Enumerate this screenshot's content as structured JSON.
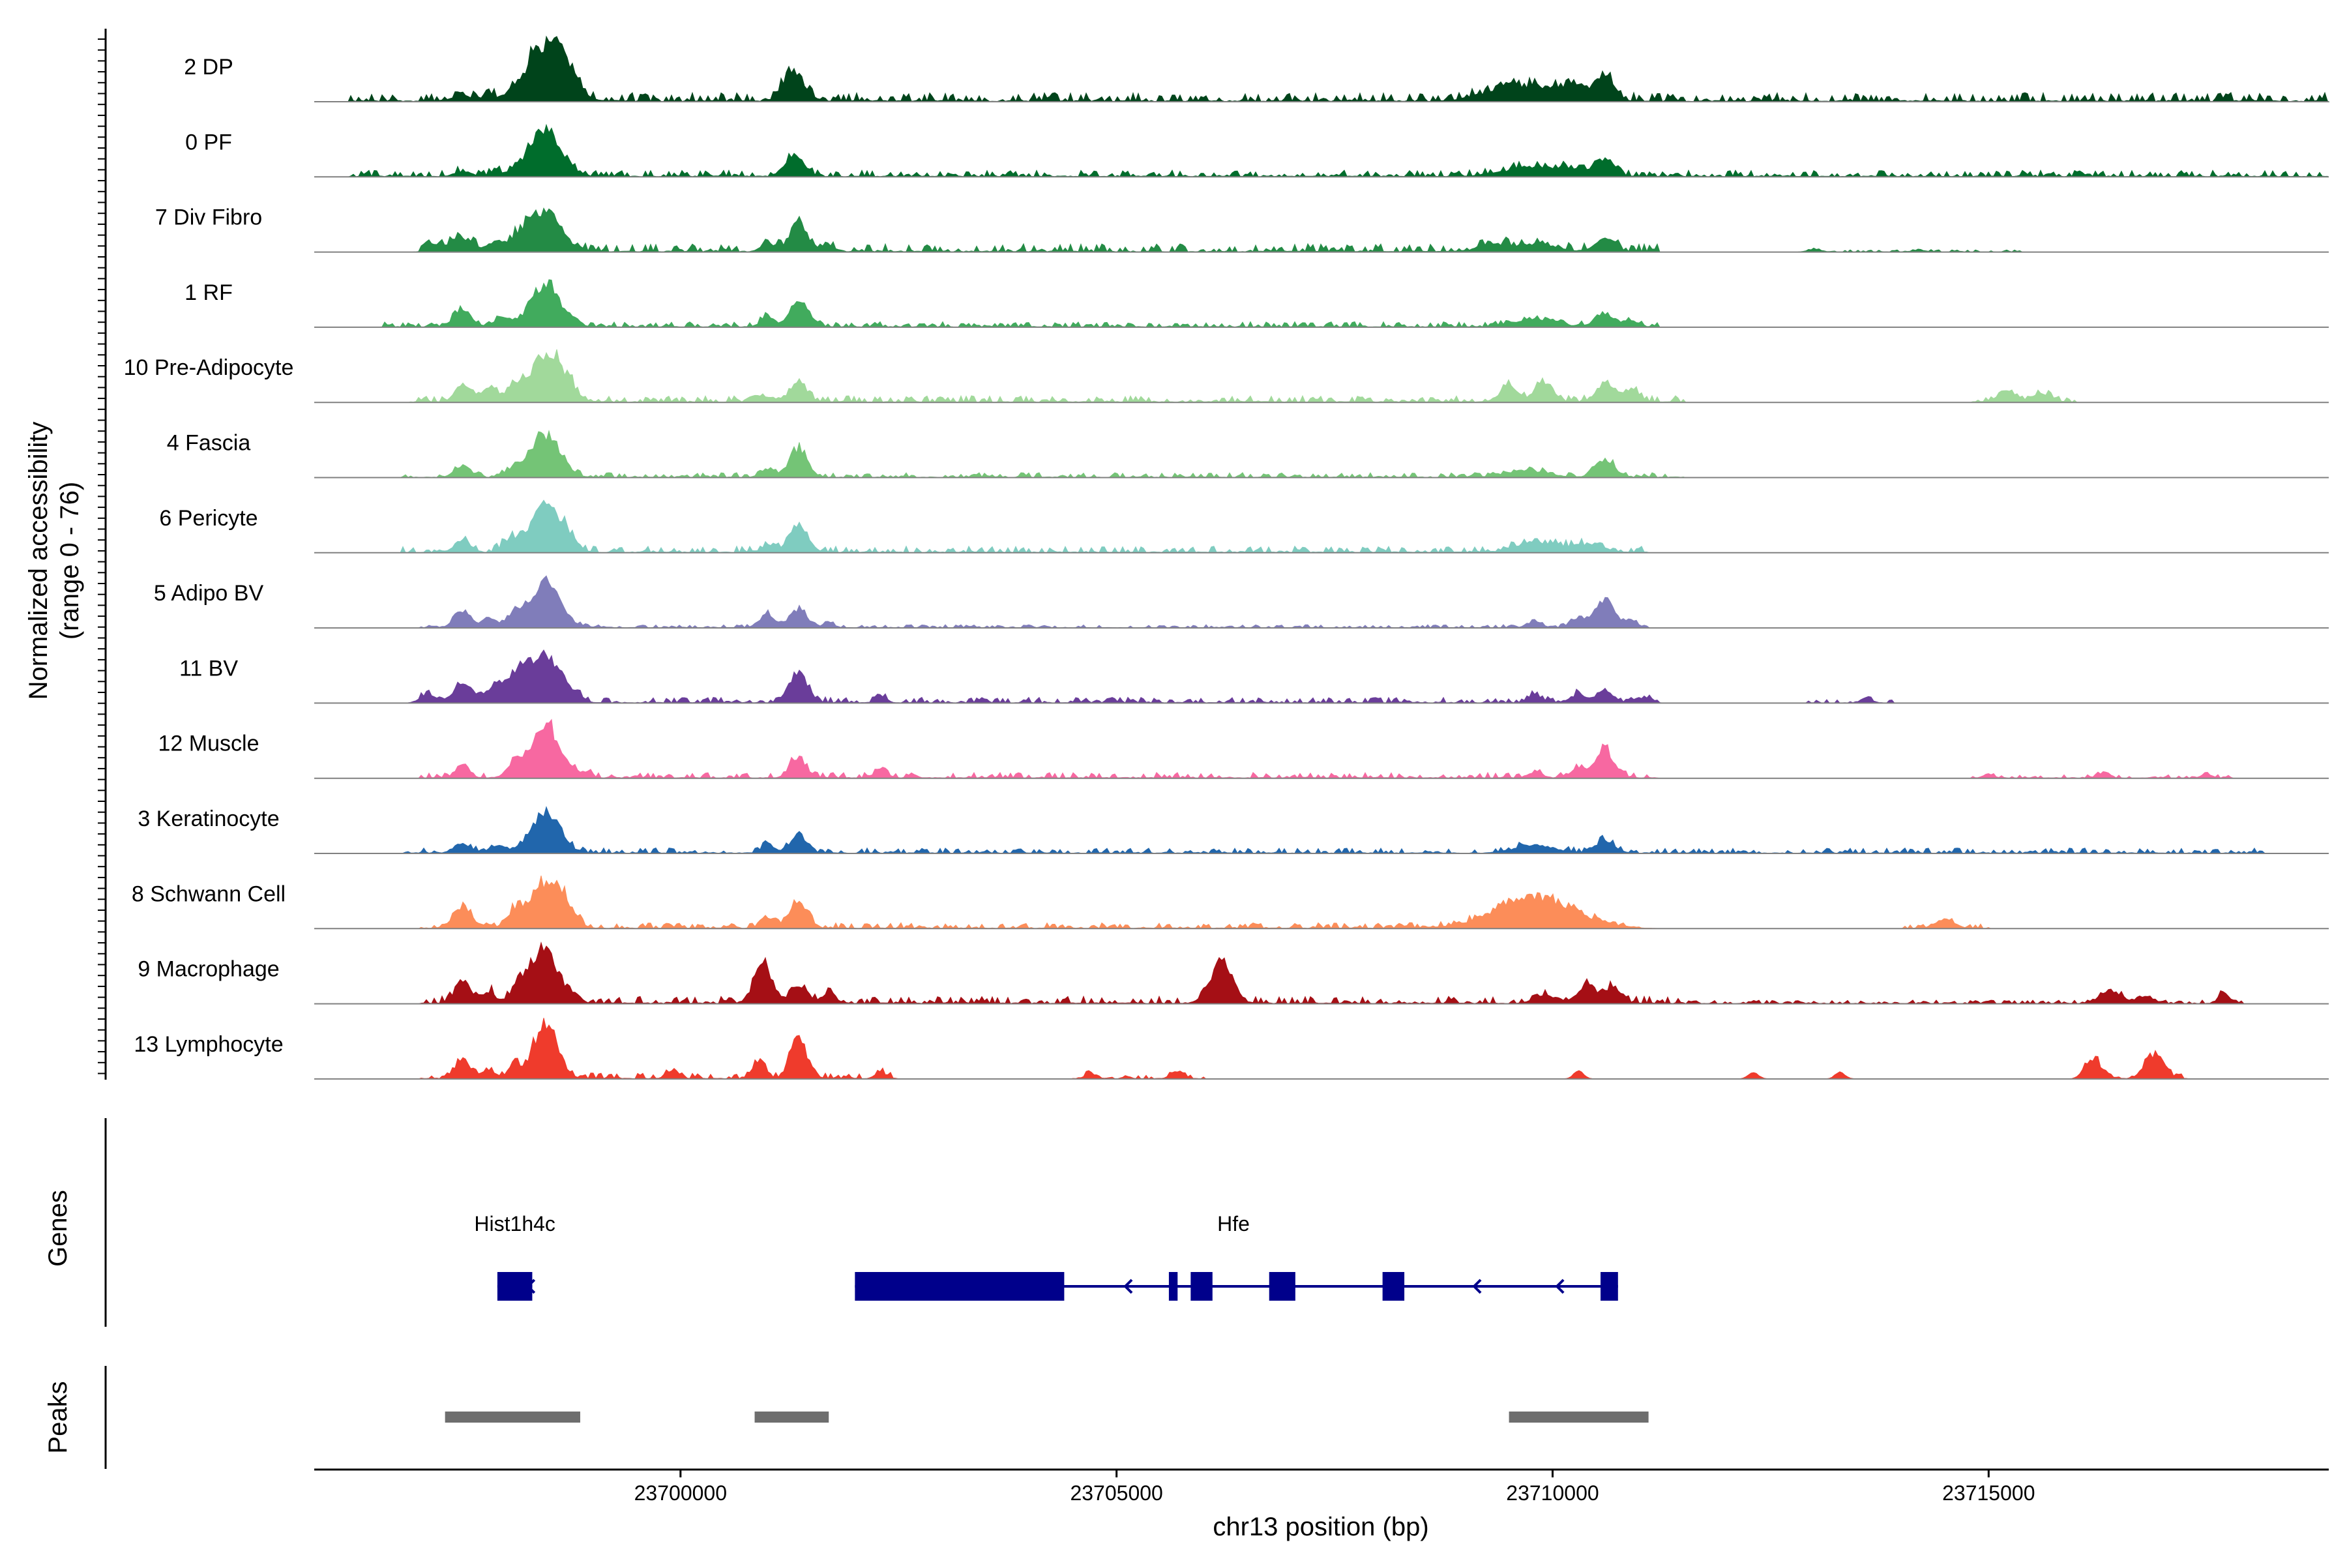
{
  "chart_data": {
    "type": "area",
    "title": "",
    "ylabel": "Normalized accessibility",
    "ylabel_range": "(range 0 - 76)",
    "yrange": [
      0,
      76
    ],
    "xlabel": "chr13 position (bp)",
    "xlim": [
      23695800,
      23718900
    ],
    "x_ticks": [
      23700000,
      23705000,
      23710000,
      23715000
    ],
    "x_tick_labels": [
      "23700000",
      "23705000",
      "23710000",
      "23715000"
    ],
    "track_labels": {
      "genes": "Genes",
      "peaks": "Peaks"
    },
    "series": [
      {
        "name": "2 DP",
        "color": "#00441b",
        "scale": 1.0,
        "peaks": [
          [
            23697500,
            95,
            14
          ],
          [
            23697800,
            60,
            10
          ],
          [
            23698050,
            70,
            12
          ],
          [
            23698450,
            1000,
            28
          ],
          [
            23698700,
            300,
            16
          ],
          [
            23701300,
            520,
            16
          ],
          [
            23709500,
            220,
            40
          ],
          [
            23709900,
            150,
            30
          ],
          [
            23710300,
            200,
            24
          ],
          [
            23710600,
            370,
            14
          ]
        ],
        "noise": [
          [
            23696200,
            23718900,
            14
          ]
        ]
      },
      {
        "name": "0 PF",
        "color": "#006d2c",
        "scale": 0.85,
        "peaks": [
          [
            23697500,
            100,
            12
          ],
          [
            23697900,
            80,
            10
          ],
          [
            23698150,
            90,
            10
          ],
          [
            23698450,
            900,
            24
          ],
          [
            23701300,
            420,
            14
          ],
          [
            23709700,
            180,
            36
          ],
          [
            23710200,
            150,
            30
          ],
          [
            23710600,
            350,
            14
          ]
        ],
        "noise": [
          [
            23696200,
            23718900,
            12
          ]
        ]
      },
      {
        "name": "7 Div Fibro",
        "color": "#238b45",
        "scale": 0.85,
        "peaks": [
          [
            23697200,
            160,
            12
          ],
          [
            23697500,
            250,
            16
          ],
          [
            23697900,
            200,
            14
          ],
          [
            23698200,
            250,
            14
          ],
          [
            23698450,
            800,
            24
          ],
          [
            23701000,
            160,
            10
          ],
          [
            23701350,
            560,
            14
          ],
          [
            23701700,
            120,
            10
          ],
          [
            23709300,
            140,
            20
          ],
          [
            23709800,
            160,
            30
          ],
          [
            23710600,
            250,
            14
          ],
          [
            23713000,
            60,
            10
          ],
          [
            23714200,
            40,
            10
          ]
        ],
        "noise": [
          [
            23697000,
            23711200,
            15
          ],
          [
            23712900,
            23715400,
            4
          ]
        ]
      },
      {
        "name": "1 RF",
        "color": "#41ab5d",
        "scale": 0.85,
        "peaks": [
          [
            23697500,
            320,
            14
          ],
          [
            23697950,
            180,
            12
          ],
          [
            23698450,
            880,
            22
          ],
          [
            23701000,
            200,
            10
          ],
          [
            23701350,
            520,
            14
          ],
          [
            23709800,
            170,
            30
          ],
          [
            23710600,
            300,
            14
          ],
          [
            23710900,
            150,
            10
          ]
        ],
        "noise": [
          [
            23696500,
            23711200,
            10
          ]
        ]
      },
      {
        "name": "10 Pre-Adipocyte",
        "color": "#a1d99b",
        "scale": 0.85,
        "peaks": [
          [
            23697500,
            320,
            12
          ],
          [
            23697800,
            280,
            12
          ],
          [
            23698100,
            350,
            12
          ],
          [
            23698450,
            960,
            22
          ],
          [
            23698700,
            300,
            14
          ],
          [
            23701000,
            100,
            10
          ],
          [
            23701350,
            400,
            12
          ],
          [
            23709500,
            300,
            14
          ],
          [
            23709900,
            400,
            14
          ],
          [
            23710600,
            380,
            14
          ],
          [
            23710900,
            260,
            12
          ],
          [
            23715200,
            180,
            14
          ],
          [
            23715600,
            180,
            14
          ]
        ],
        "noise": [
          [
            23696900,
            23711500,
            12
          ],
          [
            23714800,
            23716000,
            10
          ]
        ]
      },
      {
        "name": "4 Fascia",
        "color": "#74c476",
        "scale": 0.85,
        "peaks": [
          [
            23697500,
            230,
            12
          ],
          [
            23698100,
            180,
            12
          ],
          [
            23698450,
            880,
            22
          ],
          [
            23701000,
            180,
            10
          ],
          [
            23701350,
            580,
            14
          ],
          [
            23709700,
            140,
            30
          ],
          [
            23710600,
            380,
            14
          ]
        ],
        "noise": [
          [
            23696800,
            23711500,
            9
          ]
        ]
      },
      {
        "name": "6 Pericyte",
        "color": "#7fccc0",
        "scale": 0.85,
        "peaks": [
          [
            23697500,
            260,
            12
          ],
          [
            23698050,
            260,
            12
          ],
          [
            23698450,
            920,
            22
          ],
          [
            23698700,
            250,
            14
          ],
          [
            23701000,
            140,
            10
          ],
          [
            23701350,
            560,
            14
          ],
          [
            23709800,
            200,
            30
          ],
          [
            23710400,
            170,
            24
          ]
        ],
        "noise": [
          [
            23696800,
            23711100,
            12
          ]
        ]
      },
      {
        "name": "5 Adipo BV",
        "color": "#807dba",
        "scale": 0.85,
        "peaks": [
          [
            23697500,
            340,
            12
          ],
          [
            23697800,
            200,
            10
          ],
          [
            23698100,
            240,
            12
          ],
          [
            23698450,
            1000,
            22
          ],
          [
            23701000,
            270,
            12
          ],
          [
            23701350,
            380,
            12
          ],
          [
            23701700,
            120,
            8
          ],
          [
            23709800,
            130,
            10
          ],
          [
            23710300,
            180,
            12
          ],
          [
            23710600,
            600,
            14
          ],
          [
            23710900,
            150,
            10
          ]
        ],
        "noise": [
          [
            23697000,
            23711100,
            6
          ]
        ]
      },
      {
        "name": "11 BV",
        "color": "#6a3d9a",
        "scale": 0.9,
        "peaks": [
          [
            23697100,
            160,
            12
          ],
          [
            23697500,
            360,
            14
          ],
          [
            23697900,
            400,
            14
          ],
          [
            23698150,
            500,
            14
          ],
          [
            23698450,
            900,
            22
          ],
          [
            23698800,
            150,
            10
          ],
          [
            23701350,
            600,
            14
          ],
          [
            23702300,
            140,
            8
          ],
          [
            23709800,
            130,
            10
          ],
          [
            23710300,
            160,
            12
          ],
          [
            23710600,
            240,
            12
          ],
          [
            23711100,
            100,
            8
          ],
          [
            23713600,
            100,
            8
          ]
        ],
        "noise": [
          [
            23697000,
            23711200,
            10
          ],
          [
            23712900,
            23713900,
            6
          ]
        ]
      },
      {
        "name": "12 Muscle",
        "color": "#f768a1",
        "scale": 0.9,
        "peaks": [
          [
            23697500,
            260,
            10
          ],
          [
            23698100,
            290,
            12
          ],
          [
            23698450,
            1000,
            22
          ],
          [
            23698900,
            100,
            10
          ],
          [
            23701350,
            380,
            12
          ],
          [
            23702300,
            150,
            10
          ],
          [
            23709800,
            120,
            10
          ],
          [
            23710300,
            190,
            12
          ],
          [
            23710600,
            520,
            14
          ],
          [
            23715000,
            80,
            8
          ],
          [
            23716300,
            100,
            8
          ],
          [
            23717500,
            80,
            8
          ]
        ],
        "noise": [
          [
            23697000,
            23711200,
            10
          ],
          [
            23714800,
            23717800,
            6
          ]
        ]
      },
      {
        "name": "3 Keratinocyte",
        "color": "#2166ac",
        "scale": 0.85,
        "peaks": [
          [
            23697500,
            200,
            12
          ],
          [
            23697900,
            150,
            12
          ],
          [
            23698450,
            850,
            22
          ],
          [
            23701000,
            160,
            10
          ],
          [
            23701350,
            400,
            12
          ],
          [
            23709800,
            160,
            30
          ],
          [
            23710600,
            270,
            14
          ]
        ],
        "noise": [
          [
            23696800,
            23718200,
            10
          ]
        ]
      },
      {
        "name": "8 Schwann Cell",
        "color": "#fc8d59",
        "scale": 0.9,
        "peaks": [
          [
            23697500,
            420,
            14
          ],
          [
            23698100,
            330,
            12
          ],
          [
            23698450,
            920,
            22
          ],
          [
            23698700,
            300,
            14
          ],
          [
            23701000,
            180,
            10
          ],
          [
            23701350,
            520,
            14
          ],
          [
            23709800,
            600,
            60
          ],
          [
            23714500,
            170,
            14
          ]
        ],
        "noise": [
          [
            23697000,
            23711000,
            10
          ],
          [
            23714000,
            23715000,
            8
          ]
        ]
      },
      {
        "name": "9 Macrophage",
        "color": "#a50f15",
        "scale": 0.95,
        "peaks": [
          [
            23697500,
            400,
            12
          ],
          [
            23697800,
            220,
            10
          ],
          [
            23698150,
            350,
            12
          ],
          [
            23698450,
            1000,
            20
          ],
          [
            23698800,
            120,
            8
          ],
          [
            23700950,
            720,
            14
          ],
          [
            23701350,
            280,
            12
          ],
          [
            23701700,
            200,
            10
          ],
          [
            23706200,
            820,
            16
          ],
          [
            23709900,
            140,
            16
          ],
          [
            23710400,
            350,
            14
          ],
          [
            23710700,
            300,
            12
          ],
          [
            23716400,
            250,
            16
          ],
          [
            23716800,
            140,
            10
          ],
          [
            23717700,
            200,
            8
          ]
        ],
        "noise": [
          [
            23697000,
            23711500,
            12
          ],
          [
            23711500,
            23717900,
            6
          ]
        ]
      },
      {
        "name": "13 Lymphocyte",
        "color": "#ef3b2c",
        "scale": 0.95,
        "peaks": [
          [
            23697500,
            300,
            12
          ],
          [
            23697800,
            150,
            10
          ],
          [
            23698100,
            250,
            10
          ],
          [
            23698450,
            1000,
            18
          ],
          [
            23699900,
            160,
            8
          ],
          [
            23700900,
            300,
            10
          ],
          [
            23701350,
            780,
            12
          ],
          [
            23702300,
            120,
            8
          ],
          [
            23704700,
            100,
            8
          ],
          [
            23705700,
            140,
            10
          ],
          [
            23710300,
            140,
            8
          ],
          [
            23712300,
            120,
            8
          ],
          [
            23713300,
            120,
            8
          ],
          [
            23716200,
            380,
            12
          ],
          [
            23716900,
            460,
            14
          ]
        ],
        "noise": [
          [
            23697000,
            23702500,
            10
          ],
          [
            23704500,
            23706000,
            6
          ],
          [
            23716000,
            23717300,
            8
          ]
        ]
      }
    ],
    "genes": [
      {
        "name": "Hist1h4c",
        "strand": "-",
        "start": 23697900,
        "end": 23698300,
        "exons": [
          [
            23697900,
            23698300
          ]
        ]
      },
      {
        "name": "Hfe",
        "strand": "-",
        "start": 23702000,
        "end": 23710750,
        "exons": [
          [
            23702000,
            23704400
          ],
          [
            23705600,
            23705700
          ],
          [
            23705850,
            23706100
          ],
          [
            23706750,
            23707050
          ],
          [
            23708050,
            23708300
          ],
          [
            23710550,
            23710750
          ]
        ]
      }
    ],
    "peak_regions": [
      [
        23697300,
        23698850
      ],
      [
        23700850,
        23701700
      ],
      [
        23709500,
        23711100
      ]
    ]
  }
}
